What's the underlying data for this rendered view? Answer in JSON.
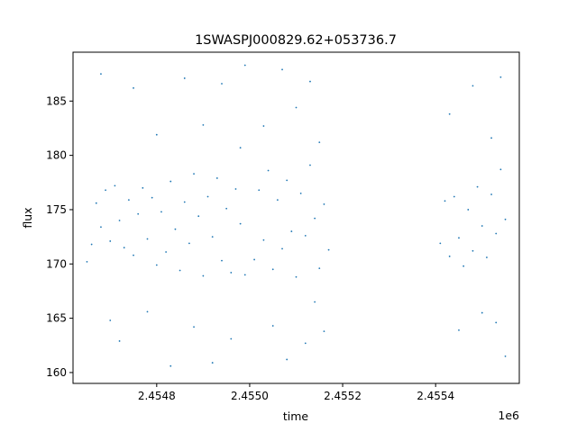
{
  "chart_data": {
    "type": "scatter",
    "title": "1SWASPJ000829.62+053736.7",
    "xlabel": "time",
    "ylabel": "flux",
    "x_offset_label": "1e6",
    "xlim": [
      2.45462,
      2.45558
    ],
    "ylim": [
      159.0,
      189.5
    ],
    "x_ticks": [
      {
        "value": 2.4548,
        "label": "2.4548"
      },
      {
        "value": 2.455,
        "label": "2.4550"
      },
      {
        "value": 2.4552,
        "label": "2.4552"
      },
      {
        "value": 2.4554,
        "label": "2.4554"
      }
    ],
    "y_ticks": [
      {
        "value": 160,
        "label": "160"
      },
      {
        "value": 165,
        "label": "165"
      },
      {
        "value": 170,
        "label": "170"
      },
      {
        "value": 175,
        "label": "175"
      },
      {
        "value": 180,
        "label": "180"
      },
      {
        "value": 185,
        "label": "185"
      }
    ],
    "grid": false,
    "marker_color": "#1f77b4",
    "series": [
      {
        "points": [
          [
            2.45465,
            170.2
          ],
          [
            2.45466,
            171.8
          ],
          [
            2.45467,
            175.6
          ],
          [
            2.45468,
            173.4
          ],
          [
            2.45469,
            176.8
          ],
          [
            2.4547,
            172.1
          ],
          [
            2.45471,
            177.2
          ],
          [
            2.45472,
            174.0
          ],
          [
            2.45473,
            171.5
          ],
          [
            2.45474,
            175.9
          ],
          [
            2.45475,
            170.8
          ],
          [
            2.45476,
            174.6
          ],
          [
            2.45477,
            177.0
          ],
          [
            2.45478,
            172.3
          ],
          [
            2.45479,
            176.1
          ],
          [
            2.4548,
            169.9
          ],
          [
            2.45481,
            174.8
          ],
          [
            2.45482,
            171.1
          ],
          [
            2.45483,
            177.6
          ],
          [
            2.45484,
            173.2
          ],
          [
            2.45485,
            169.4
          ],
          [
            2.45486,
            175.7
          ],
          [
            2.45487,
            171.9
          ],
          [
            2.45488,
            178.3
          ],
          [
            2.45489,
            174.4
          ],
          [
            2.4549,
            168.9
          ],
          [
            2.45491,
            176.2
          ],
          [
            2.45492,
            172.5
          ],
          [
            2.45493,
            177.9
          ],
          [
            2.45494,
            170.3
          ],
          [
            2.45495,
            175.1
          ],
          [
            2.45496,
            169.2
          ],
          [
            2.45497,
            176.9
          ],
          [
            2.45498,
            173.7
          ],
          [
            2.45499,
            169.0
          ],
          [
            2.45468,
            187.5
          ],
          [
            2.4547,
            164.8
          ],
          [
            2.45472,
            162.9
          ],
          [
            2.45475,
            186.2
          ],
          [
            2.45478,
            165.6
          ],
          [
            2.4548,
            181.9
          ],
          [
            2.45483,
            160.6
          ],
          [
            2.45486,
            187.1
          ],
          [
            2.45488,
            164.2
          ],
          [
            2.4549,
            182.8
          ],
          [
            2.45492,
            160.9
          ],
          [
            2.45494,
            186.6
          ],
          [
            2.45496,
            163.1
          ],
          [
            2.45498,
            180.7
          ],
          [
            2.45499,
            188.3
          ],
          [
            2.45501,
            170.4
          ],
          [
            2.45502,
            176.8
          ],
          [
            2.45503,
            172.2
          ],
          [
            2.45504,
            178.6
          ],
          [
            2.45505,
            169.5
          ],
          [
            2.45506,
            175.9
          ],
          [
            2.45507,
            171.4
          ],
          [
            2.45508,
            177.7
          ],
          [
            2.45509,
            173.0
          ],
          [
            2.4551,
            168.8
          ],
          [
            2.45511,
            176.5
          ],
          [
            2.45512,
            172.6
          ],
          [
            2.45513,
            179.1
          ],
          [
            2.45514,
            174.2
          ],
          [
            2.45515,
            169.6
          ],
          [
            2.45516,
            175.5
          ],
          [
            2.45517,
            171.3
          ],
          [
            2.45503,
            182.7
          ],
          [
            2.45505,
            164.3
          ],
          [
            2.45507,
            187.9
          ],
          [
            2.45508,
            161.2
          ],
          [
            2.4551,
            184.4
          ],
          [
            2.45512,
            162.7
          ],
          [
            2.45513,
            186.8
          ],
          [
            2.45514,
            166.5
          ],
          [
            2.45515,
            181.2
          ],
          [
            2.45516,
            163.8
          ],
          [
            2.45541,
            171.9
          ],
          [
            2.45542,
            175.8
          ],
          [
            2.45543,
            170.7
          ],
          [
            2.45544,
            176.2
          ],
          [
            2.45545,
            172.4
          ],
          [
            2.45546,
            169.8
          ],
          [
            2.45547,
            175.0
          ],
          [
            2.45548,
            171.2
          ],
          [
            2.45549,
            177.1
          ],
          [
            2.4555,
            173.5
          ],
          [
            2.45551,
            170.6
          ],
          [
            2.45552,
            176.4
          ],
          [
            2.45553,
            172.8
          ],
          [
            2.45554,
            178.7
          ],
          [
            2.45555,
            174.1
          ],
          [
            2.45543,
            183.8
          ],
          [
            2.45545,
            163.9
          ],
          [
            2.45548,
            186.4
          ],
          [
            2.4555,
            165.5
          ],
          [
            2.45552,
            181.6
          ],
          [
            2.45553,
            164.6
          ],
          [
            2.45554,
            187.2
          ],
          [
            2.45555,
            161.5
          ]
        ]
      }
    ]
  }
}
